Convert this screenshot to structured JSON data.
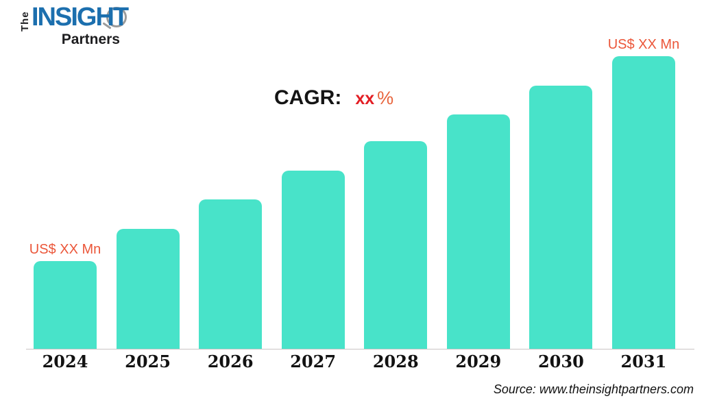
{
  "logo": {
    "the": "The",
    "insight": "INSIGHT",
    "partners": "Partners",
    "insight_color": "#1c6fae"
  },
  "cagr": {
    "label": "CAGR:",
    "value": "xx",
    "percent": "%",
    "value_color": "#e31e24",
    "percent_color": "#e8643c"
  },
  "source": {
    "text": "Source: www.theinsightpartners.com"
  },
  "chart_data": {
    "type": "bar",
    "title": "",
    "xlabel": "",
    "ylabel": "",
    "categories": [
      "2024",
      "2025",
      "2026",
      "2027",
      "2028",
      "2029",
      "2030",
      "2031"
    ],
    "values_relative": [
      30,
      41,
      51,
      61,
      71,
      80,
      90,
      100
    ],
    "ylim": [
      0,
      100
    ],
    "grid": false,
    "legend": false,
    "bar_color": "#48e3c9",
    "value_label_color": "#eb5639",
    "value_labels": {
      "2024": "US$ XX Mn",
      "2031": "US$ XX Mn"
    }
  }
}
